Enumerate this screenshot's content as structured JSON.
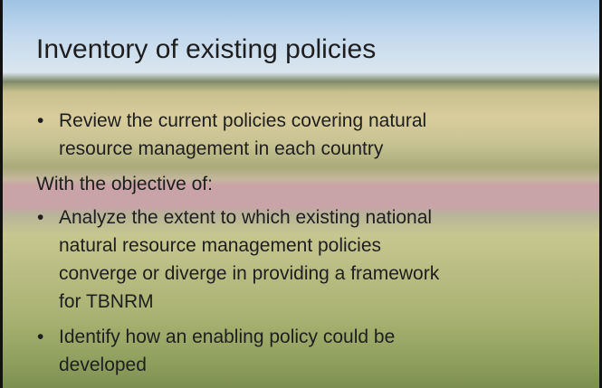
{
  "title": "Inventory of existing policies",
  "items": [
    {
      "kind": "bullet",
      "lines": [
        "Review the current policies covering natural",
        "resource management in each country"
      ]
    },
    {
      "kind": "text",
      "lines": [
        "With the objective of:"
      ]
    },
    {
      "kind": "bullet",
      "lines": [
        "Analyze the extent to which existing national",
        "natural resource management policies",
        "converge or diverge in providing a framework",
        "for TBNRM"
      ]
    },
    {
      "kind": "bullet",
      "lines": [
        "Identify how an enabling policy could be",
        "developed"
      ]
    }
  ]
}
